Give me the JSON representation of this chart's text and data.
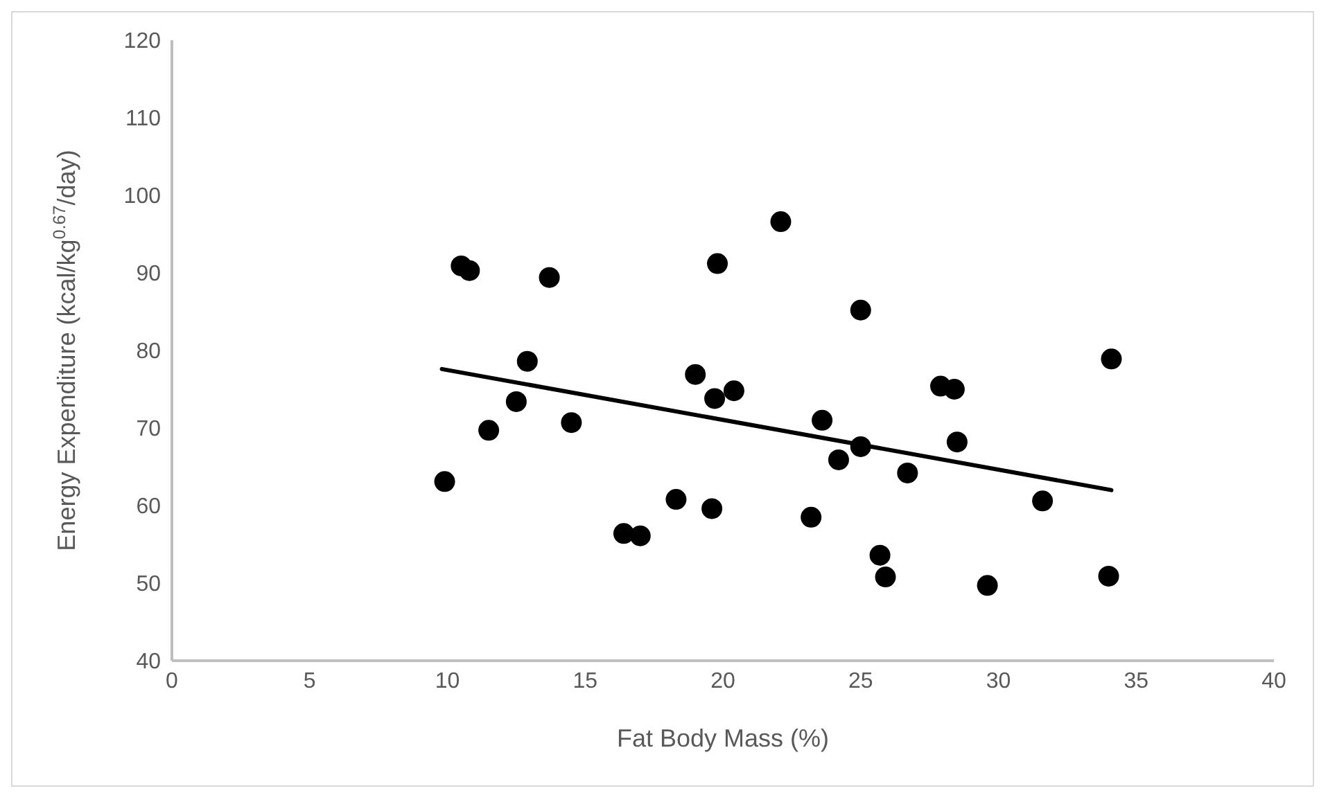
{
  "chart_data": {
    "type": "scatter",
    "xlabel": "Fat Body Mass (%)",
    "ylabel": "Energy Expenditure (kcal/kg$^{0.67}$/day)",
    "xlim": [
      0,
      40
    ],
    "xticks": [
      0,
      5,
      10,
      15,
      20,
      25,
      30,
      35,
      40
    ],
    "ylim": [
      40,
      120
    ],
    "yticks": [
      40,
      50,
      60,
      70,
      80,
      90,
      100,
      110,
      120
    ],
    "grid": false,
    "marker": "circle",
    "series": [
      {
        "color": "#000000",
        "x": [
          10.5,
          10.8,
          13.7,
          19.8,
          12.9,
          19.0,
          20.4,
          19.7,
          12.5,
          11.5,
          14.5,
          9.9,
          18.3,
          19.6,
          16.4,
          17.0,
          22.1,
          25.0,
          34.1,
          27.9,
          28.4,
          23.6,
          25.0,
          24.2,
          28.5,
          26.7,
          31.6,
          23.2,
          25.7,
          25.9,
          29.6,
          34.0
        ],
        "values": [
          90.9,
          90.3,
          89.4,
          91.2,
          78.6,
          76.9,
          74.8,
          73.8,
          73.4,
          69.7,
          70.7,
          63.1,
          60.8,
          59.6,
          56.4,
          56.1,
          96.6,
          85.2,
          78.9,
          75.4,
          75.0,
          71.0,
          67.6,
          65.9,
          68.2,
          64.2,
          60.6,
          58.5,
          53.6,
          50.8,
          49.7,
          50.9
        ]
      },
      {
        "type": "line",
        "color": "#000000",
        "marker": "none",
        "x": [
          9.8,
          34.1
        ],
        "values": [
          77.6,
          62.0
        ]
      }
    ]
  }
}
